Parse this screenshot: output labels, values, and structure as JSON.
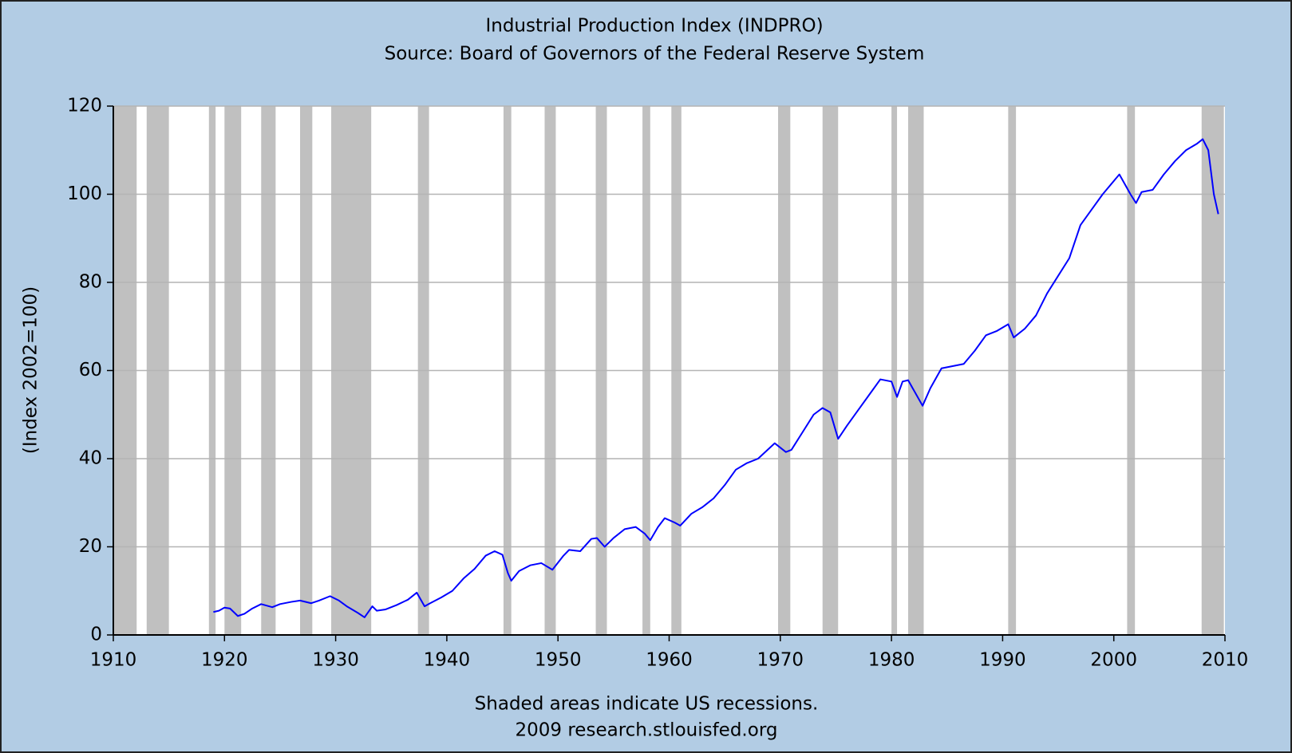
{
  "chart_data": {
    "type": "line",
    "title": "Industrial Production Index (INDPRO)",
    "subtitle": "Source: Board of Governors of the Federal Reserve System",
    "y_label": "(Index 2002=100)",
    "note": "Shaded areas indicate US recessions.",
    "credit": "2009 research.stlouisfed.org",
    "xlim": [
      1910,
      2010
    ],
    "xticks": [
      1910,
      1920,
      1930,
      1940,
      1950,
      1960,
      1970,
      1980,
      1990,
      2000,
      2010
    ],
    "ylim": [
      0,
      120
    ],
    "yticks": [
      0,
      20,
      40,
      60,
      80,
      100,
      120
    ],
    "grid": true,
    "recession_color": "#c0c0c0",
    "recessions": [
      [
        1910.0,
        1912.1
      ],
      [
        1913.0,
        1915.0
      ],
      [
        1918.6,
        1919.2
      ],
      [
        1920.0,
        1921.5
      ],
      [
        1923.3,
        1924.6
      ],
      [
        1926.8,
        1927.9
      ],
      [
        1929.6,
        1933.2
      ],
      [
        1937.4,
        1938.4
      ],
      [
        1945.1,
        1945.8
      ],
      [
        1948.8,
        1949.8
      ],
      [
        1953.4,
        1954.4
      ],
      [
        1957.6,
        1958.3
      ],
      [
        1960.2,
        1961.1
      ],
      [
        1969.8,
        1970.9
      ],
      [
        1973.8,
        1975.2
      ],
      [
        1980.0,
        1980.5
      ],
      [
        1981.5,
        1982.9
      ],
      [
        1990.5,
        1991.2
      ],
      [
        2001.2,
        2001.9
      ],
      [
        2007.9,
        2009.9
      ]
    ],
    "x": [
      1919.0,
      1919.5,
      1920.0,
      1920.5,
      1921.2,
      1921.8,
      1922.5,
      1923.3,
      1924.3,
      1925.0,
      1926.0,
      1926.8,
      1927.8,
      1928.5,
      1929.5,
      1930.3,
      1931.0,
      1932.0,
      1932.6,
      1933.3,
      1933.7,
      1934.5,
      1935.5,
      1936.5,
      1937.3,
      1938.0,
      1938.5,
      1939.5,
      1940.5,
      1941.5,
      1942.5,
      1943.5,
      1944.3,
      1945.0,
      1945.5,
      1945.8,
      1946.5,
      1947.5,
      1948.5,
      1949.5,
      1950.5,
      1951.0,
      1952.0,
      1953.0,
      1953.5,
      1954.2,
      1955.0,
      1956.0,
      1957.0,
      1957.8,
      1958.3,
      1959.0,
      1959.6,
      1960.5,
      1961.0,
      1962.0,
      1963.0,
      1964.0,
      1965.0,
      1966.0,
      1967.0,
      1968.0,
      1969.5,
      1970.5,
      1971.0,
      1972.0,
      1973.0,
      1973.8,
      1974.5,
      1975.2,
      1976.0,
      1977.0,
      1978.0,
      1979.0,
      1980.0,
      1980.5,
      1981.0,
      1981.5,
      1982.8,
      1983.5,
      1984.5,
      1985.5,
      1986.5,
      1987.5,
      1988.5,
      1989.5,
      1990.5,
      1991.0,
      1992.0,
      1993.0,
      1994.0,
      1995.0,
      1996.0,
      1997.0,
      1998.0,
      1999.0,
      2000.5,
      2001.5,
      2002.0,
      2002.5,
      2003.5,
      2004.5,
      2005.5,
      2006.5,
      2007.5,
      2008.0,
      2008.5,
      2009.0,
      2009.4
    ],
    "series": [
      {
        "name": "INDPRO",
        "color": "#0000ff",
        "values": [
          5.2,
          5.5,
          6.2,
          6.0,
          4.3,
          4.8,
          6.0,
          7.0,
          6.3,
          7.0,
          7.5,
          7.8,
          7.2,
          7.8,
          8.8,
          7.8,
          6.5,
          5.0,
          4.0,
          6.5,
          5.5,
          5.8,
          6.8,
          8.0,
          9.6,
          6.5,
          7.2,
          8.5,
          10.0,
          12.8,
          15.0,
          18.0,
          19.0,
          18.2,
          14.0,
          12.3,
          14.5,
          15.8,
          16.3,
          14.8,
          18.0,
          19.3,
          19.0,
          21.8,
          22.0,
          20.0,
          22.0,
          24.0,
          24.5,
          23.0,
          21.5,
          24.5,
          26.5,
          25.5,
          24.8,
          27.5,
          29.0,
          31.0,
          34.0,
          37.5,
          39.0,
          40.0,
          43.5,
          41.5,
          42.0,
          46.0,
          50.0,
          51.5,
          50.5,
          44.5,
          47.5,
          51.0,
          54.5,
          58.0,
          57.5,
          54.0,
          57.5,
          57.8,
          52.0,
          56.0,
          60.5,
          61.0,
          61.5,
          64.5,
          68.0,
          69.0,
          70.5,
          67.5,
          69.5,
          72.5,
          77.5,
          81.5,
          85.5,
          93.0,
          96.5,
          100.0,
          104.5,
          100.0,
          98.0,
          100.5,
          101.0,
          104.5,
          107.5,
          110.0,
          111.5,
          112.5,
          110.0,
          100.0,
          95.5
        ]
      }
    ]
  }
}
